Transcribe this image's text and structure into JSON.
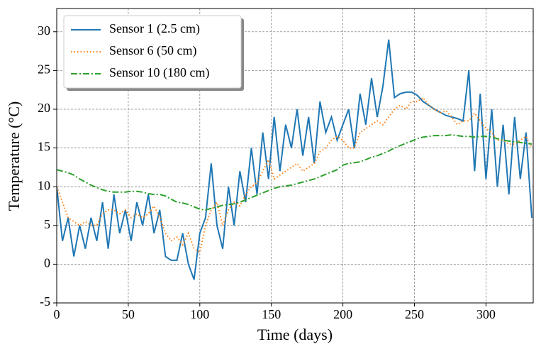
{
  "chart_data": {
    "type": "line",
    "xlabel": "Time (days)",
    "ylabel": "Temperature (°C)",
    "xlim": [
      0,
      333
    ],
    "ylim": [
      -5,
      33
    ],
    "xticks": [
      0,
      50,
      100,
      150,
      200,
      250,
      300
    ],
    "yticks": [
      -5,
      0,
      5,
      10,
      15,
      20,
      25,
      30
    ],
    "grid": true,
    "legend": "upper left",
    "x": [
      0,
      4,
      8,
      12,
      16,
      20,
      24,
      28,
      32,
      36,
      40,
      44,
      48,
      52,
      56,
      60,
      64,
      68,
      72,
      76,
      80,
      84,
      88,
      92,
      96,
      100,
      104,
      108,
      112,
      116,
      120,
      124,
      128,
      132,
      136,
      140,
      144,
      148,
      152,
      156,
      160,
      164,
      168,
      172,
      176,
      180,
      184,
      188,
      192,
      196,
      200,
      204,
      208,
      212,
      216,
      220,
      224,
      228,
      232,
      236,
      240,
      244,
      248,
      252,
      256,
      260,
      264,
      268,
      272,
      276,
      280,
      284,
      288,
      292,
      296,
      300,
      304,
      308,
      312,
      316,
      320,
      324,
      328,
      332
    ],
    "series": [
      {
        "name": "Sensor 1 (2.5 cm)",
        "color": "#1f77b4",
        "style": "solid",
        "values": [
          10,
          3,
          6,
          1,
          5,
          2,
          6,
          3,
          8,
          2,
          9,
          4,
          7,
          3,
          8,
          5,
          9,
          4,
          7,
          1,
          0.5,
          0.5,
          4,
          0,
          -2,
          4,
          6,
          13,
          5,
          2,
          10,
          5,
          12,
          8,
          15,
          9,
          17,
          11,
          19,
          12,
          18,
          15,
          20,
          14,
          19,
          13,
          21,
          17,
          19,
          16,
          18,
          20,
          15,
          22,
          18,
          24,
          19,
          23,
          29,
          21.5,
          22,
          22.2,
          22.2,
          21.8,
          21,
          20.5,
          20,
          19.6,
          19.2,
          19,
          18.8,
          18.5,
          25,
          12,
          22,
          11,
          20,
          10,
          18,
          9,
          19,
          11,
          17,
          6
        ]
      },
      {
        "name": "Sensor 6 (50 cm)",
        "color": "#ff7f0e",
        "style": "dotted",
        "values": [
          10,
          8,
          6,
          5.5,
          5,
          5.5,
          5,
          5,
          6.5,
          7,
          7,
          6.5,
          7,
          6,
          6.5,
          6,
          6.5,
          7.5,
          6,
          4,
          3,
          3.5,
          2.5,
          4,
          2,
          1.5,
          5,
          7,
          8,
          5,
          7,
          8,
          7.5,
          9,
          10,
          10.5,
          12,
          13.5,
          11,
          11.5,
          12,
          12.5,
          13,
          12,
          12.5,
          13,
          14.5,
          15,
          16,
          16.5,
          16,
          15,
          15,
          17,
          17.5,
          18,
          18.5,
          18,
          19,
          20,
          20.5,
          20,
          21,
          21,
          21.5,
          20.5,
          20,
          19.5,
          19.8,
          19,
          18,
          18.5,
          18.5,
          19.5,
          18.5,
          17.5,
          17,
          16,
          16,
          15.5,
          15.5,
          16,
          16.5,
          15
        ]
      },
      {
        "name": "Sensor 10 (180 cm)",
        "color": "#2ca02c",
        "style": "dashdot",
        "values": [
          12.2,
          12,
          11.8,
          11.5,
          11,
          10.6,
          10.2,
          9.9,
          9.6,
          9.4,
          9.3,
          9.3,
          9.3,
          9.4,
          9.4,
          9.3,
          9.1,
          9,
          9,
          8.8,
          8.4,
          8,
          7.9,
          7.7,
          7.4,
          7.1,
          7,
          7.2,
          7.4,
          7.6,
          7.7,
          7.8,
          8,
          8.3,
          8.6,
          8.9,
          9.2,
          9.5,
          9.8,
          10,
          10.1,
          10.2,
          10.4,
          10.6,
          10.8,
          11,
          11.3,
          11.6,
          11.9,
          12.2,
          12.8,
          13,
          13.1,
          13.2,
          13.5,
          13.8,
          14,
          14.3,
          14.6,
          15,
          15.3,
          15.6,
          15.9,
          16.2,
          16.4,
          16.5,
          16.6,
          16.6,
          16.6,
          16.7,
          16.6,
          16.5,
          16.5,
          16.4,
          16.5,
          16.5,
          16.4,
          16.2,
          16,
          15.9,
          15.8,
          15.7,
          15.6,
          15.5
        ]
      }
    ]
  }
}
